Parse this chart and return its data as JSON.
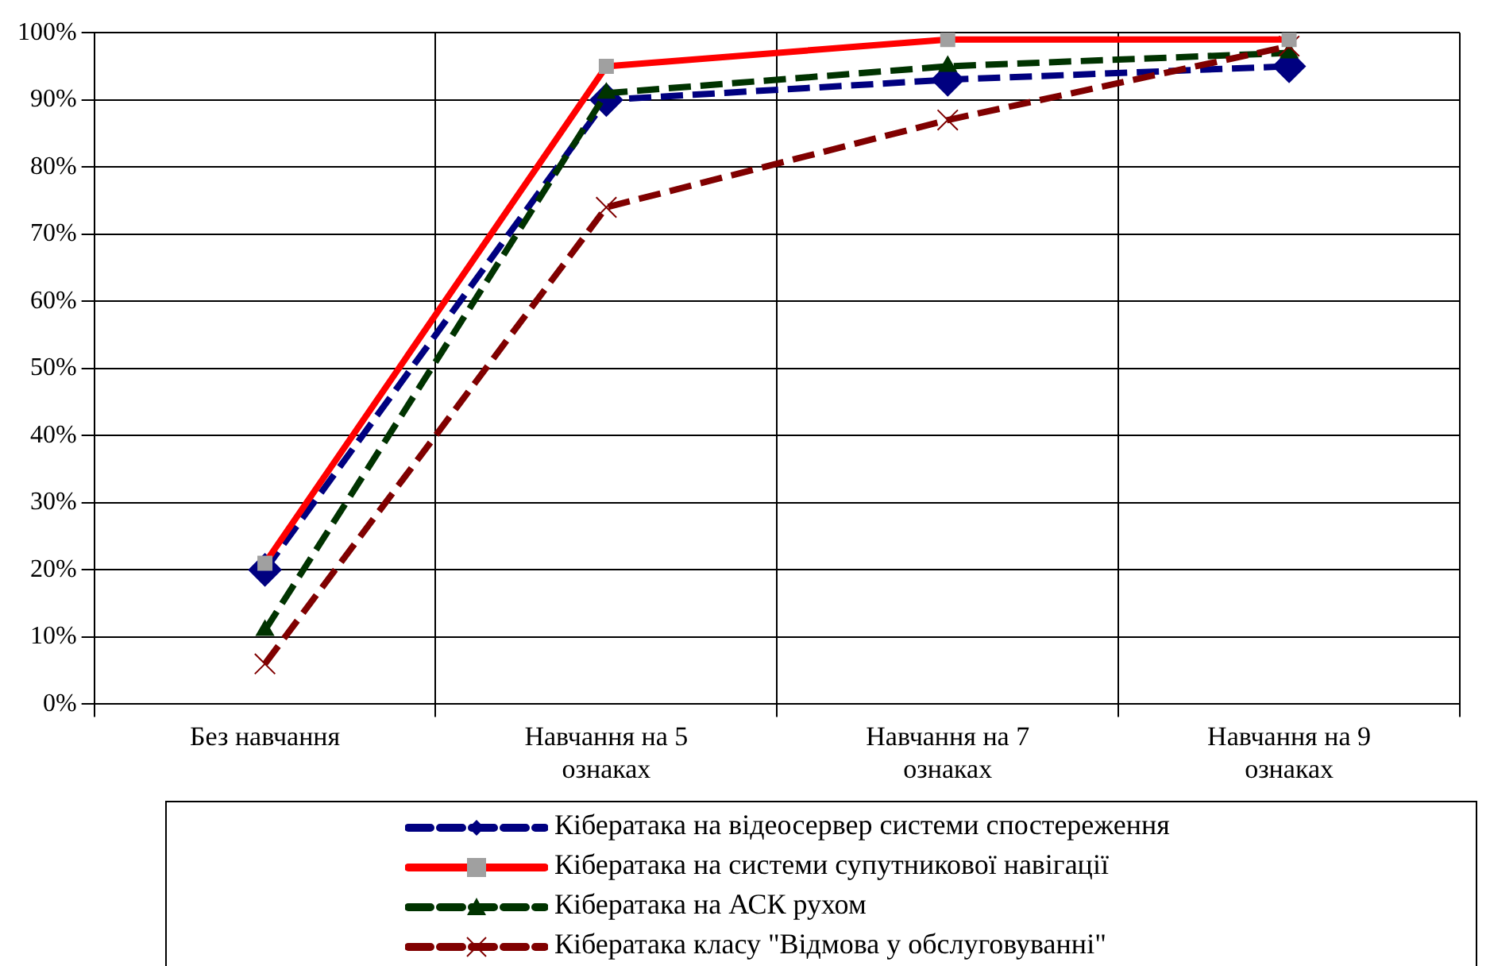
{
  "chart_data": {
    "type": "line",
    "categories": [
      "Без навчання",
      "Навчання на 5 ознаках",
      "Навчання на 7 ознаках",
      "Навчання на 9 ознаках"
    ],
    "series": [
      {
        "name": "Кібератака на відеосервер системи спостереження",
        "color": "#000080",
        "values": [
          20,
          90,
          93,
          95
        ],
        "marker": "diamond",
        "line_style": "dashed"
      },
      {
        "name": "Кібератака на системи супутникової навігації",
        "color": "#ff0000",
        "values": [
          21,
          95,
          99,
          99
        ],
        "marker": "square",
        "line_style": "solid"
      },
      {
        "name": "Кібератака на АСК рухом",
        "color": "#003300",
        "values": [
          11,
          91,
          95,
          97
        ],
        "marker": "triangle",
        "line_style": "dashed"
      },
      {
        "name": "Кібератака класу \"Відмова у обслуговуванні\"",
        "color": "#800000",
        "values": [
          6,
          74,
          87,
          98
        ],
        "marker": "cross",
        "line_style": "dashed"
      }
    ],
    "ylim": [
      0,
      100
    ],
    "yticks": [
      {
        "value": 0,
        "label": "0%"
      },
      {
        "value": 10,
        "label": "10%"
      },
      {
        "value": 20,
        "label": "20%"
      },
      {
        "value": 30,
        "label": "30%"
      },
      {
        "value": 40,
        "label": "40%"
      },
      {
        "value": 50,
        "label": "50%"
      },
      {
        "value": 60,
        "label": "60%"
      },
      {
        "value": 70,
        "label": "70%"
      },
      {
        "value": 80,
        "label": "80%"
      },
      {
        "value": 90,
        "label": "90%"
      },
      {
        "value": 100,
        "label": "100%"
      }
    ],
    "grid": true,
    "legend": "bottom"
  }
}
